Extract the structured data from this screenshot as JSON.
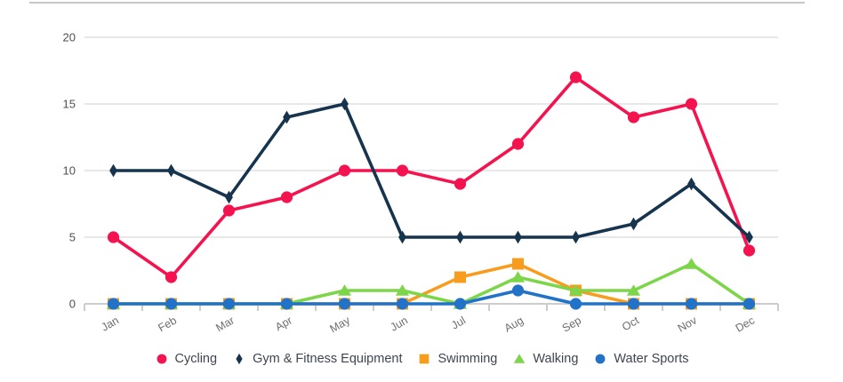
{
  "chart_data": {
    "type": "line",
    "title": "",
    "xlabel": "",
    "ylabel": "",
    "categories": [
      "Jan",
      "Feb",
      "Mar",
      "Apr",
      "May",
      "Jun",
      "Jul",
      "Aug",
      "Sep",
      "Oct",
      "Nov",
      "Dec"
    ],
    "series": [
      {
        "name": "Cycling",
        "color": "#f4134f",
        "marker": "circle",
        "values": [
          5,
          2,
          7,
          8,
          10,
          10,
          9,
          12,
          17,
          14,
          15,
          4
        ]
      },
      {
        "name": "Gym & Fitness Equipment",
        "color": "#16344e",
        "marker": "diamond",
        "values": [
          10,
          10,
          8,
          14,
          15,
          5,
          5,
          5,
          5,
          6,
          9,
          5
        ]
      },
      {
        "name": "Swimming",
        "color": "#f89c1e",
        "marker": "square",
        "values": [
          0,
          0,
          0,
          0,
          0,
          0,
          2,
          3,
          1,
          0,
          0,
          0
        ]
      },
      {
        "name": "Walking",
        "color": "#7dd54a",
        "marker": "triangle",
        "values": [
          0,
          0,
          0,
          0,
          1,
          1,
          0,
          2,
          1,
          1,
          3,
          0
        ]
      },
      {
        "name": "Water Sports",
        "color": "#2273c8",
        "marker": "circle",
        "values": [
          0,
          0,
          0,
          0,
          0,
          0,
          0,
          1,
          0,
          0,
          0,
          0
        ]
      }
    ],
    "ylim": [
      0,
      20
    ],
    "yticks": [
      0,
      5,
      10,
      15,
      20
    ],
    "grid": true,
    "legend_position": "bottom"
  },
  "style": {
    "top_border_color": "#c6c6c6",
    "grid_color": "#d9d9d9",
    "axis_color": "#cccccc",
    "y_label_color": "#4f4f4f",
    "x_label_color": "#6e6e6e",
    "legend_text_color": "#3e4551"
  }
}
